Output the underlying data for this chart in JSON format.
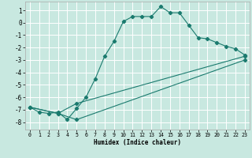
{
  "xlabel": "Humidex (Indice chaleur)",
  "background_color": "#c8e8e0",
  "grid_color": "#ffffff",
  "line_color": "#1a7a6e",
  "xlim": [
    -0.5,
    23.5
  ],
  "ylim": [
    -8.6,
    1.7
  ],
  "yticks": [
    1,
    0,
    -1,
    -2,
    -3,
    -4,
    -5,
    -6,
    -7,
    -8
  ],
  "xticks": [
    0,
    1,
    2,
    3,
    4,
    5,
    6,
    7,
    8,
    9,
    10,
    11,
    12,
    13,
    14,
    15,
    16,
    17,
    18,
    19,
    20,
    21,
    22,
    23
  ],
  "line1_x": [
    0,
    1,
    2,
    3,
    4,
    5,
    6,
    7,
    8,
    9,
    10,
    11,
    12,
    13,
    14,
    15,
    16,
    17,
    18,
    19,
    20,
    21,
    22,
    23
  ],
  "line1_y": [
    -6.8,
    -7.2,
    -7.3,
    -7.2,
    -7.8,
    -6.9,
    -6.0,
    -4.5,
    -2.7,
    -1.5,
    0.1,
    0.5,
    0.5,
    0.5,
    1.3,
    0.8,
    0.8,
    -0.2,
    -1.2,
    -1.3,
    -1.6,
    -1.9,
    -2.1,
    -2.6
  ],
  "line2_x": [
    0,
    3,
    5,
    23
  ],
  "line2_y": [
    -6.8,
    -7.3,
    -6.5,
    -2.7
  ],
  "line3_x": [
    0,
    3,
    5,
    23
  ],
  "line3_y": [
    -6.8,
    -7.3,
    -7.8,
    -3.0
  ]
}
